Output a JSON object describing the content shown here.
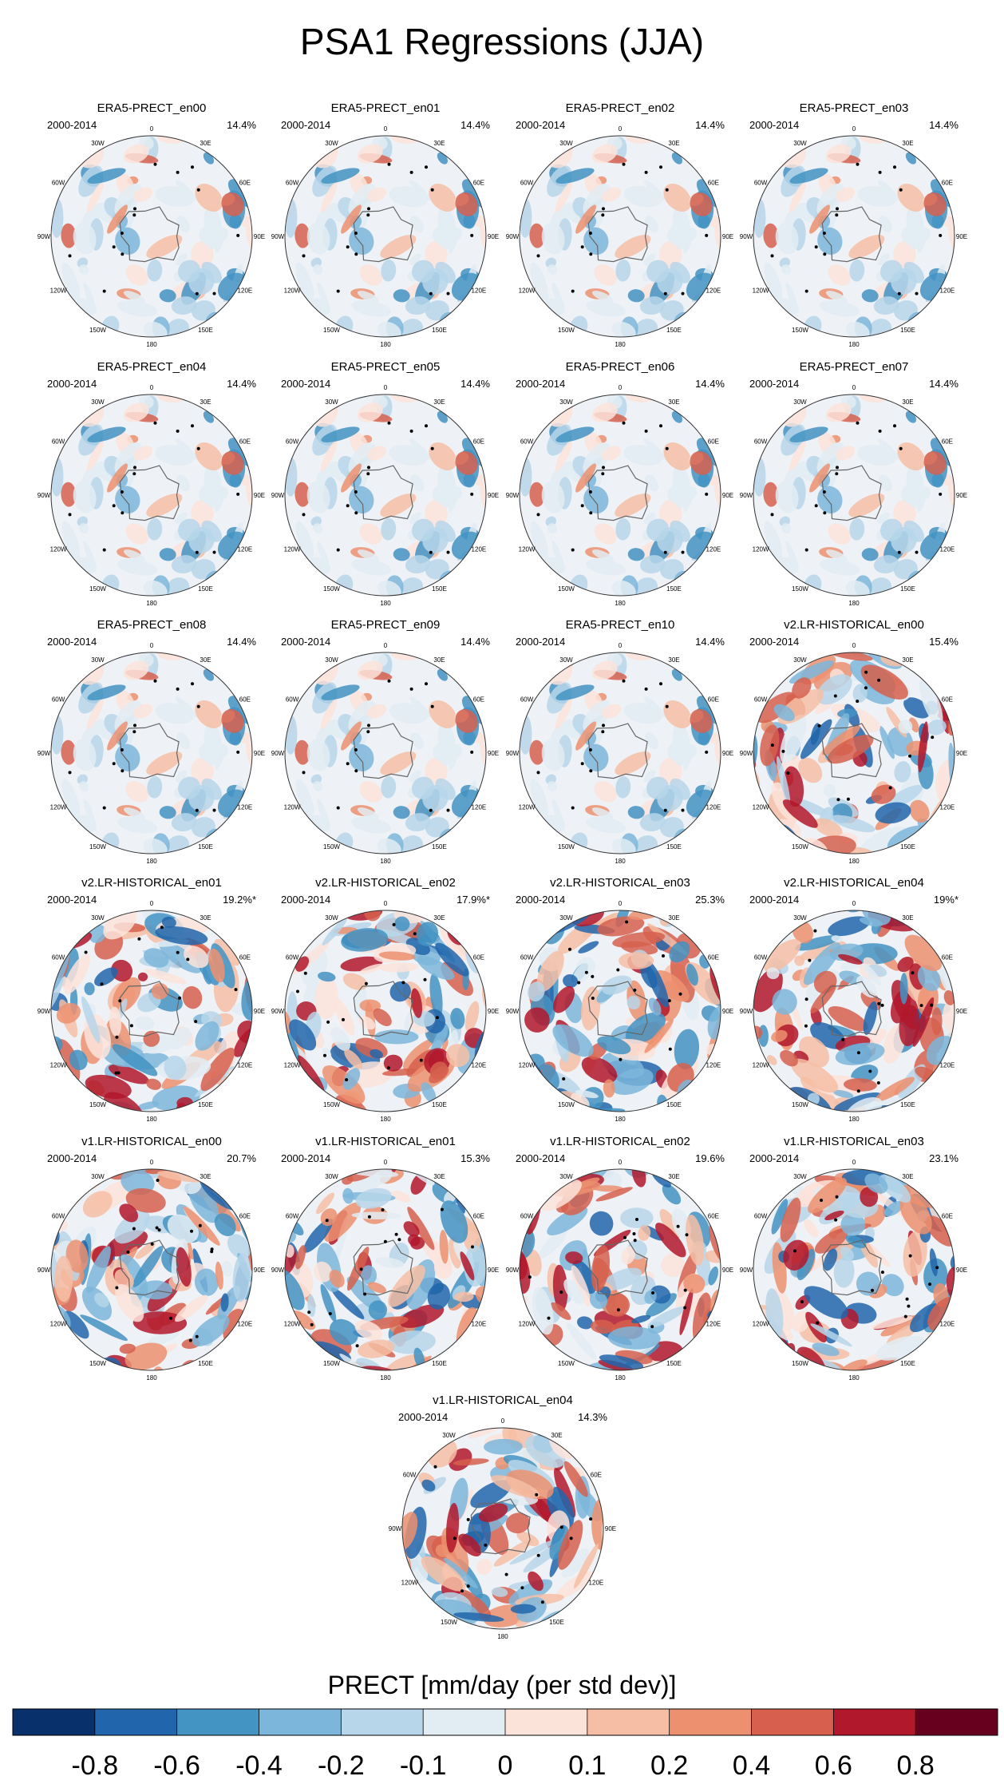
{
  "title": "PSA1 Regressions (JJA)",
  "chart_data": {
    "type": "heatmap",
    "projection": "south-polar-stereographic",
    "title": "PSA1 Regressions (JJA)",
    "panels": [
      {
        "name": "ERA5-PRECT_en00",
        "period": "2000-2014",
        "variance": "14.4%",
        "style": "era5"
      },
      {
        "name": "ERA5-PRECT_en01",
        "period": "2000-2014",
        "variance": "14.4%",
        "style": "era5"
      },
      {
        "name": "ERA5-PRECT_en02",
        "period": "2000-2014",
        "variance": "14.4%",
        "style": "era5"
      },
      {
        "name": "ERA5-PRECT_en03",
        "period": "2000-2014",
        "variance": "14.4%",
        "style": "era5"
      },
      {
        "name": "ERA5-PRECT_en04",
        "period": "2000-2014",
        "variance": "14.4%",
        "style": "era5"
      },
      {
        "name": "ERA5-PRECT_en05",
        "period": "2000-2014",
        "variance": "14.4%",
        "style": "era5"
      },
      {
        "name": "ERA5-PRECT_en06",
        "period": "2000-2014",
        "variance": "14.4%",
        "style": "era5"
      },
      {
        "name": "ERA5-PRECT_en07",
        "period": "2000-2014",
        "variance": "14.4%",
        "style": "era5"
      },
      {
        "name": "ERA5-PRECT_en08",
        "period": "2000-2014",
        "variance": "14.4%",
        "style": "era5"
      },
      {
        "name": "ERA5-PRECT_en09",
        "period": "2000-2014",
        "variance": "14.4%",
        "style": "era5"
      },
      {
        "name": "ERA5-PRECT_en10",
        "period": "2000-2014",
        "variance": "14.4%",
        "style": "era5"
      },
      {
        "name": "v2.LR-HISTORICAL_en00",
        "period": "2000-2014",
        "variance": "15.4%",
        "style": "model"
      },
      {
        "name": "v2.LR-HISTORICAL_en01",
        "period": "2000-2014",
        "variance": "19.2%*",
        "style": "model"
      },
      {
        "name": "v2.LR-HISTORICAL_en02",
        "period": "2000-2014",
        "variance": "17.9%*",
        "style": "model"
      },
      {
        "name": "v2.LR-HISTORICAL_en03",
        "period": "2000-2014",
        "variance": "25.3%",
        "style": "model"
      },
      {
        "name": "v2.LR-HISTORICAL_en04",
        "period": "2000-2014",
        "variance": "19%*",
        "style": "model"
      },
      {
        "name": "v1.LR-HISTORICAL_en00",
        "period": "2000-2014",
        "variance": "20.7%",
        "style": "model"
      },
      {
        "name": "v1.LR-HISTORICAL_en01",
        "period": "2000-2014",
        "variance": "15.3%",
        "style": "model"
      },
      {
        "name": "v1.LR-HISTORICAL_en02",
        "period": "2000-2014",
        "variance": "19.6%",
        "style": "model"
      },
      {
        "name": "v1.LR-HISTORICAL_en03",
        "period": "2000-2014",
        "variance": "23.1%",
        "style": "model"
      },
      {
        "name": "v1.LR-HISTORICAL_en04",
        "period": "2000-2014",
        "variance": "14.3%",
        "style": "model"
      }
    ],
    "longitude_labels": [
      "0",
      "30E",
      "60E",
      "90E",
      "120E",
      "150E",
      "180",
      "150W",
      "120W",
      "90W",
      "60W",
      "30W"
    ],
    "colorbar": {
      "title": "PRECT [mm/day (per std dev)]",
      "levels": [
        "-0.8",
        "-0.6",
        "-0.4",
        "-0.2",
        "-0.1",
        "0",
        "0.1",
        "0.2",
        "0.4",
        "0.6",
        "0.8"
      ],
      "colors": [
        "#08306b",
        "#2166ac",
        "#4393c3",
        "#7cb6db",
        "#b7d6ea",
        "#e2ecf3",
        "#fbe3da",
        "#f6bea5",
        "#ec9070",
        "#d6604d",
        "#b2182b",
        "#67001f"
      ]
    }
  }
}
